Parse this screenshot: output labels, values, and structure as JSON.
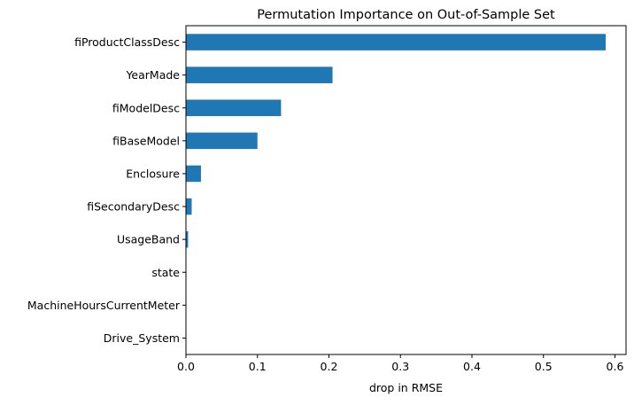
{
  "chart_data": {
    "type": "bar",
    "orientation": "horizontal",
    "title": "Permutation Importance on Out-of-Sample Set",
    "xlabel": "drop in RMSE",
    "ylabel": "",
    "categories": [
      "fiProductClassDesc",
      "YearMade",
      "fiModelDesc",
      "fiBaseModel",
      "Enclosure",
      "fiSecondaryDesc",
      "UsageBand",
      "state",
      "MachineHoursCurrentMeter",
      "Drive_System"
    ],
    "values": [
      0.587,
      0.205,
      0.133,
      0.1,
      0.021,
      0.008,
      0.003,
      0.0005,
      0.0003,
      0.0001
    ],
    "xlim": [
      0.0,
      0.6155
    ],
    "xticks": [
      0.0,
      0.1,
      0.2,
      0.3,
      0.4,
      0.5,
      0.6
    ],
    "xtick_labels": [
      "0.0",
      "0.1",
      "0.2",
      "0.3",
      "0.4",
      "0.5",
      "0.6"
    ],
    "bar_color": "#1f77b4",
    "grid": false,
    "legend": "none"
  }
}
